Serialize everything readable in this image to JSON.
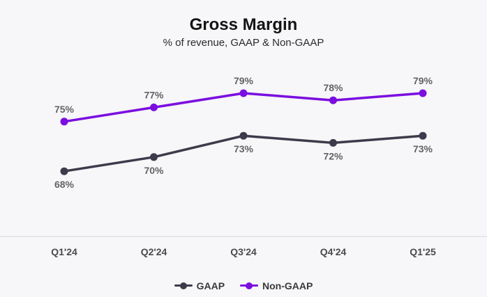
{
  "chart_data": {
    "type": "line",
    "title": "Gross Margin",
    "subtitle": "% of revenue, GAAP & Non-GAAP",
    "categories": [
      "Q1'24",
      "Q2'24",
      "Q3'24",
      "Q4'24",
      "Q1'25"
    ],
    "series": [
      {
        "name": "GAAP",
        "values": [
          68,
          70,
          73,
          72,
          73
        ],
        "labels": [
          "68%",
          "70%",
          "73%",
          "72%",
          "73%"
        ],
        "color": "#3d3b4b"
      },
      {
        "name": "Non-GAAP",
        "values": [
          75,
          77,
          79,
          78,
          79
        ],
        "labels": [
          "75%",
          "77%",
          "79%",
          "78%",
          "79%"
        ],
        "color": "#7a0ee0"
      }
    ],
    "legend": "bottom-center",
    "grid": false
  }
}
